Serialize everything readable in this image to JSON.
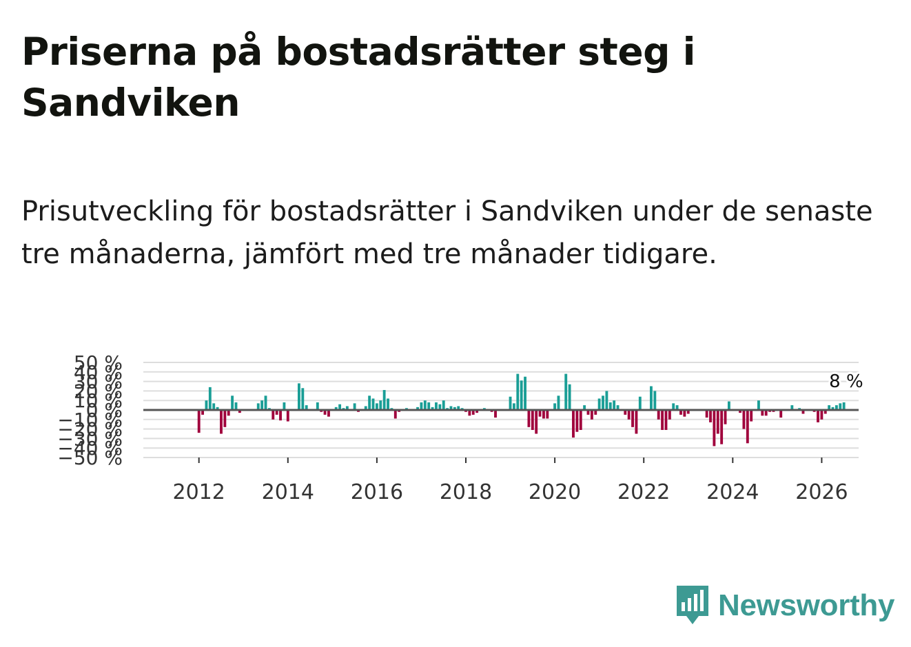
{
  "header": {
    "title": "Priserna på bostadsrätter steg i Sandviken",
    "subtitle": "Prisutveckling för bostadsrätter i Sandviken under de senaste tre månaderna, jämfört med tre månader tidigare."
  },
  "brand": {
    "name": "Newsworthy",
    "icon": "bar-chart-speech-bubble-icon",
    "color": "#3d9a93"
  },
  "colors": {
    "positive": "#1a9e96",
    "negative": "#a0003c",
    "zero_line": "#555555",
    "grid": "#dddddd"
  },
  "chart_data": {
    "type": "bar",
    "title": "Priserna på bostadsrätter steg i Sandviken",
    "xlabel": "",
    "ylabel": "",
    "ylim": [
      -50,
      50
    ],
    "yticks": [
      50,
      40,
      30,
      20,
      10,
      0,
      -10,
      -20,
      -30,
      -40,
      -50
    ],
    "ytick_labels": [
      "50 %",
      "40 %",
      "30 %",
      "20 %",
      "10 %",
      "0 %",
      "−10 %",
      "−20 %",
      "−30 %",
      "−40 %",
      "−50 %"
    ],
    "xticks": [
      2012,
      2014,
      2016,
      2018,
      2020,
      2022,
      2024,
      2026
    ],
    "xlim": [
      2010.75,
      2026.83
    ],
    "grid": true,
    "last_value_label": "8 %",
    "x_start": 2012.0,
    "x_step": 0.08333,
    "values": [
      -24,
      -5,
      10,
      24,
      7,
      3,
      -25,
      -18,
      -6,
      15,
      8,
      -3,
      0,
      0,
      0,
      0,
      7,
      10,
      15,
      2,
      -10,
      -5,
      -11,
      8,
      -12,
      0,
      0,
      28,
      23,
      5,
      0,
      0,
      8,
      -2,
      -5,
      -7,
      0,
      3,
      6,
      2,
      4,
      0,
      7,
      -2,
      0,
      4,
      15,
      12,
      7,
      10,
      21,
      12,
      2,
      -9,
      -2,
      0,
      2,
      0,
      0,
      3,
      8,
      10,
      8,
      3,
      8,
      6,
      10,
      2,
      4,
      3,
      4,
      2,
      -2,
      -6,
      -5,
      -3,
      0,
      2,
      0,
      -2,
      -8,
      0,
      0,
      0,
      14,
      7,
      38,
      31,
      35,
      -18,
      -21,
      -25,
      -7,
      -9,
      -9,
      0,
      7,
      15,
      0,
      38,
      27,
      -29,
      -23,
      -21,
      5,
      -5,
      -10,
      -5,
      12,
      15,
      20,
      8,
      10,
      5,
      0,
      -5,
      -10,
      -18,
      -25,
      14,
      0,
      0,
      25,
      20,
      -10,
      -21,
      -21,
      -10,
      7,
      5,
      -5,
      -7,
      -4,
      0,
      0,
      0,
      0,
      -8,
      -13,
      -38,
      -25,
      -36,
      -15,
      9,
      0,
      0,
      -3,
      -20,
      -35,
      -12,
      0,
      10,
      -6,
      -6,
      -2,
      -2,
      0,
      -8,
      0,
      0,
      5,
      0,
      2,
      -4,
      0,
      0,
      -2,
      -13,
      -10,
      -4,
      5,
      3,
      5,
      7,
      8
    ]
  }
}
